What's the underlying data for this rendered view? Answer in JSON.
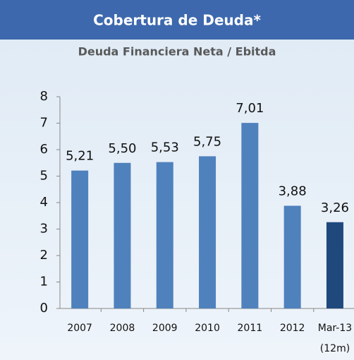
{
  "chart_data": {
    "type": "bar",
    "title": "Cobertura de Deuda*",
    "subtitle": "Deuda Financiera Neta / Ebitda",
    "categories": [
      "2007",
      "2008",
      "2009",
      "2010",
      "2011",
      "2012",
      "Mar-13"
    ],
    "annotation": "(12m)",
    "values": [
      5.21,
      5.5,
      5.53,
      5.75,
      7.01,
      3.88,
      3.26
    ],
    "value_labels": [
      "5,21",
      "5,50",
      "5,53",
      "5,75",
      "7,01",
      "3,88",
      "3,26"
    ],
    "colors": [
      "#4f81bd",
      "#4f81bd",
      "#4f81bd",
      "#4f81bd",
      "#4f81bd",
      "#4f81bd",
      "#1f497d"
    ],
    "ylim": [
      0,
      8
    ],
    "yticks": [
      0,
      1,
      2,
      3,
      4,
      5,
      6,
      7,
      8
    ],
    "grid": false
  }
}
